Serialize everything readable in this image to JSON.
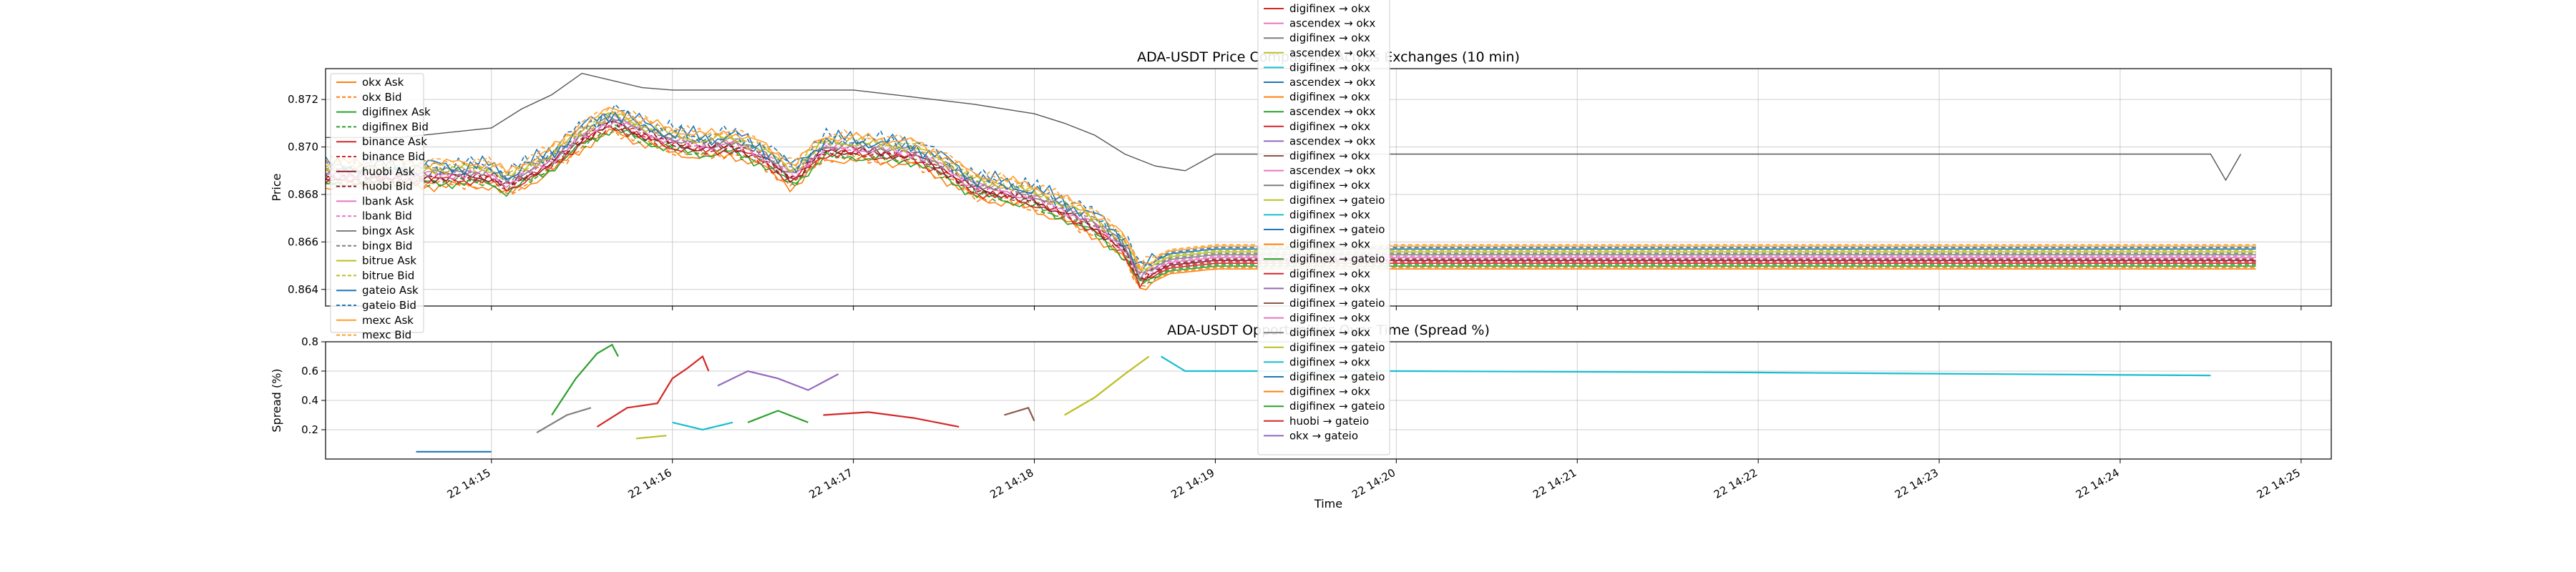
{
  "chart_data": [
    {
      "type": "line",
      "title": "ADA-USDT Price Comparison Across Exchanges (10 min)",
      "xlabel": "",
      "ylabel": "Price",
      "ylim": [
        0.8633,
        0.8733
      ],
      "yticks": [
        0.864,
        0.866,
        0.868,
        0.87,
        0.872
      ],
      "ytick_labels": [
        "0.864",
        "0.866",
        "0.868",
        "0.870",
        "0.872"
      ],
      "xlim": [
        "14:14:05",
        "14:25:10"
      ],
      "xticks": [
        "14:15",
        "14:16",
        "14:17",
        "14:18",
        "14:19",
        "14:20",
        "14:21",
        "14:22",
        "14:23",
        "14:24",
        "14:25"
      ],
      "xtick_labels": [
        "22 14:15",
        "22 14:16",
        "22 14:17",
        "22 14:18",
        "22 14:19",
        "22 14:20",
        "22 14:21",
        "22 14:22",
        "22 14:23",
        "22 14:24",
        "22 14:25"
      ],
      "grid": true,
      "legend_position": "upper-left",
      "series": [
        {
          "name": "okx Ask",
          "color": "#ff7f0e",
          "dash": false
        },
        {
          "name": "okx Bid",
          "color": "#ff7f0e",
          "dash": true
        },
        {
          "name": "digifinex Ask",
          "color": "#2ca02c",
          "dash": false
        },
        {
          "name": "digifinex Bid",
          "color": "#2ca02c",
          "dash": true
        },
        {
          "name": "binance Ask",
          "color": "#d62728",
          "dash": false
        },
        {
          "name": "binance Bid",
          "color": "#d62728",
          "dash": true
        },
        {
          "name": "huobi Ask",
          "color": "#8c1a2a",
          "dash": false
        },
        {
          "name": "huobi Bid",
          "color": "#8c1a2a",
          "dash": true
        },
        {
          "name": "lbank Ask",
          "color": "#e377c2",
          "dash": false
        },
        {
          "name": "lbank Bid",
          "color": "#e377c2",
          "dash": true
        },
        {
          "name": "bingx Ask",
          "color": "#7f7f7f",
          "dash": false
        },
        {
          "name": "bingx Bid",
          "color": "#7f7f7f",
          "dash": true
        },
        {
          "name": "bitrue Ask",
          "color": "#bcbd22",
          "dash": false
        },
        {
          "name": "bitrue Bid",
          "color": "#bcbd22",
          "dash": true
        },
        {
          "name": "gateio Ask",
          "color": "#1f77b4",
          "dash": false
        },
        {
          "name": "gateio Bid",
          "color": "#1f77b4",
          "dash": true
        },
        {
          "name": "mexc Ask",
          "color": "#ff9e2c",
          "dash": false
        },
        {
          "name": "mexc Bid",
          "color": "#ff9e2c",
          "dash": true
        }
      ],
      "reference_curve": {
        "x": [
          "14:14:05",
          "14:14:30",
          "14:15:00",
          "14:15:10",
          "14:15:20",
          "14:15:30",
          "14:15:40",
          "14:15:50",
          "14:16:00",
          "14:16:20",
          "14:16:40",
          "14:17:00",
          "14:17:20",
          "14:17:40",
          "14:18:00",
          "14:18:10",
          "14:18:20",
          "14:18:30",
          "14:18:40",
          "14:18:50",
          "14:19:00",
          "14:20:00",
          "14:22:00",
          "14:24:00",
          "14:24:30",
          "14:24:35",
          "14:24:40"
        ],
        "y": [
          0.8704,
          0.8704,
          0.8708,
          0.8716,
          0.8722,
          0.8731,
          0.8728,
          0.8725,
          0.8724,
          0.8724,
          0.8724,
          0.8724,
          0.8721,
          0.8718,
          0.8714,
          0.871,
          0.8705,
          0.8697,
          0.8692,
          0.869,
          0.8697,
          0.8697,
          0.8697,
          0.8697,
          0.8697,
          0.8686,
          0.8697
        ]
      },
      "mid_curve": {
        "x": [
          "14:14:05",
          "14:15:00",
          "14:15:05",
          "14:15:20",
          "14:15:30",
          "14:15:40",
          "14:15:50",
          "14:16:00",
          "14:16:10",
          "14:16:20",
          "14:16:30",
          "14:16:40",
          "14:16:50",
          "14:17:00",
          "14:17:10",
          "14:17:20",
          "14:17:30",
          "14:17:40",
          "14:17:50",
          "14:18:00",
          "14:18:10",
          "14:18:20",
          "14:18:30",
          "14:18:35",
          "14:18:45",
          "14:19:00",
          "14:20:00",
          "14:22:00",
          "14:24:00",
          "14:24:45"
        ],
        "y": [
          0.8689,
          0.8689,
          0.8685,
          0.8695,
          0.8705,
          0.8712,
          0.8707,
          0.8703,
          0.8701,
          0.8702,
          0.8697,
          0.8688,
          0.87,
          0.87,
          0.8699,
          0.8698,
          0.8692,
          0.8684,
          0.8682,
          0.8679,
          0.8674,
          0.8668,
          0.8658,
          0.8646,
          0.8652,
          0.8654,
          0.8654,
          0.8654,
          0.8654,
          0.8654
        ]
      }
    },
    {
      "type": "line",
      "title": "ADA-USDT Opportunities Over Time (Spread %)",
      "xlabel": "Time",
      "ylabel": "Spread (%)",
      "ylim": [
        0.0,
        0.8
      ],
      "yticks": [
        0.2,
        0.4,
        0.6,
        0.8
      ],
      "ytick_labels": [
        "0.2",
        "0.4",
        "0.6",
        "0.8"
      ],
      "grid": true,
      "legend_position": "center",
      "legend_entries": [
        {
          "name": "digifinex → okx",
          "color": "#d62728"
        },
        {
          "name": "ascendex → okx",
          "color": "#e377c2"
        },
        {
          "name": "digifinex → okx",
          "color": "#7f7f7f"
        },
        {
          "name": "ascendex → okx",
          "color": "#bcbd22"
        },
        {
          "name": "digifinex → okx",
          "color": "#17becf"
        },
        {
          "name": "ascendex → okx",
          "color": "#1f77b4"
        },
        {
          "name": "digifinex → okx",
          "color": "#ff7f0e"
        },
        {
          "name": "ascendex → okx",
          "color": "#2ca02c"
        },
        {
          "name": "digifinex → okx",
          "color": "#d62728"
        },
        {
          "name": "ascendex → okx",
          "color": "#9467bd"
        },
        {
          "name": "digifinex → okx",
          "color": "#8c564b"
        },
        {
          "name": "ascendex → okx",
          "color": "#e377c2"
        },
        {
          "name": "digifinex → okx",
          "color": "#7f7f7f"
        },
        {
          "name": "digifinex → gateio",
          "color": "#bcbd22"
        },
        {
          "name": "digifinex → okx",
          "color": "#17becf"
        },
        {
          "name": "digifinex → gateio",
          "color": "#1f77b4"
        },
        {
          "name": "digifinex → okx",
          "color": "#ff7f0e"
        },
        {
          "name": "digifinex → gateio",
          "color": "#2ca02c"
        },
        {
          "name": "digifinex → okx",
          "color": "#d62728"
        },
        {
          "name": "digifinex → okx",
          "color": "#9467bd"
        },
        {
          "name": "digifinex → gateio",
          "color": "#8c564b"
        },
        {
          "name": "digifinex → okx",
          "color": "#e377c2"
        },
        {
          "name": "digifinex → okx",
          "color": "#7f7f7f"
        },
        {
          "name": "digifinex → gateio",
          "color": "#bcbd22"
        },
        {
          "name": "digifinex → okx",
          "color": "#17becf"
        },
        {
          "name": "digifinex → gateio",
          "color": "#1f77b4"
        },
        {
          "name": "digifinex → okx",
          "color": "#ff7f0e"
        },
        {
          "name": "digifinex → gateio",
          "color": "#2ca02c"
        },
        {
          "name": "huobi → gateio",
          "color": "#d62728"
        },
        {
          "name": "okx → gateio",
          "color": "#9467bd"
        }
      ],
      "segments": [
        {
          "color": "#1f77b4",
          "x": [
            "14:14:35",
            "14:15:00"
          ],
          "y": [
            0.05,
            0.05
          ]
        },
        {
          "color": "#7f7f7f",
          "x": [
            "14:15:15",
            "14:15:25",
            "14:15:33"
          ],
          "y": [
            0.18,
            0.3,
            0.35
          ]
        },
        {
          "color": "#2ca02c",
          "x": [
            "14:15:20",
            "14:15:28",
            "14:15:35",
            "14:15:40",
            "14:15:42"
          ],
          "y": [
            0.3,
            0.55,
            0.72,
            0.78,
            0.7
          ]
        },
        {
          "color": "#d62728",
          "x": [
            "14:15:35",
            "14:15:45",
            "14:15:55",
            "14:16:00",
            "14:16:05",
            "14:16:10",
            "14:16:12"
          ],
          "y": [
            0.22,
            0.35,
            0.38,
            0.55,
            0.62,
            0.7,
            0.6
          ]
        },
        {
          "color": "#bcbd22",
          "x": [
            "14:15:48",
            "14:15:58"
          ],
          "y": [
            0.14,
            0.16
          ]
        },
        {
          "color": "#17becf",
          "x": [
            "14:16:00",
            "14:16:10",
            "14:16:20"
          ],
          "y": [
            0.25,
            0.2,
            0.25
          ]
        },
        {
          "color": "#9467bd",
          "x": [
            "14:16:15",
            "14:16:25",
            "14:16:35",
            "14:16:45",
            "14:16:55"
          ],
          "y": [
            0.5,
            0.6,
            0.55,
            0.47,
            0.58
          ]
        },
        {
          "color": "#2ca02c",
          "x": [
            "14:16:25",
            "14:16:35",
            "14:16:45"
          ],
          "y": [
            0.25,
            0.33,
            0.25
          ]
        },
        {
          "color": "#d62728",
          "x": [
            "14:16:50",
            "14:17:05",
            "14:17:20",
            "14:17:35"
          ],
          "y": [
            0.3,
            0.32,
            0.28,
            0.22
          ]
        },
        {
          "color": "#8c564b",
          "x": [
            "14:17:50",
            "14:17:58",
            "14:18:00"
          ],
          "y": [
            0.3,
            0.35,
            0.26
          ]
        },
        {
          "color": "#bcbd22",
          "x": [
            "14:18:10",
            "14:18:20",
            "14:18:30",
            "14:18:38"
          ],
          "y": [
            0.3,
            0.42,
            0.58,
            0.7
          ]
        },
        {
          "color": "#17becf",
          "x": [
            "14:18:42",
            "14:18:50",
            "14:19:10",
            "14:20:00",
            "14:22:00",
            "14:24:30"
          ],
          "y": [
            0.7,
            0.6,
            0.6,
            0.6,
            0.59,
            0.57
          ]
        }
      ]
    }
  ]
}
